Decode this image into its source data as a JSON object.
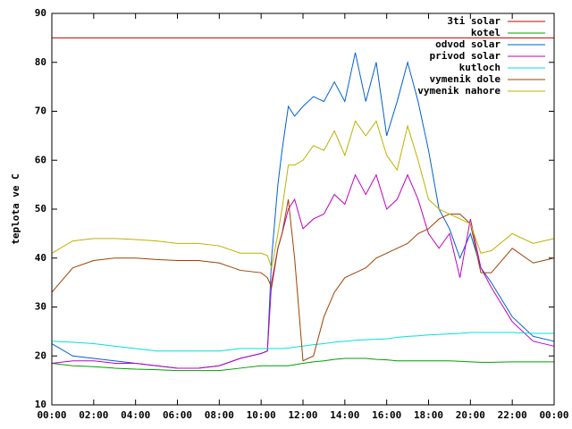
{
  "chart_data": {
    "type": "line",
    "ylabel": "teplota ve C",
    "x": [
      0,
      1,
      2,
      3,
      4,
      5,
      6,
      7,
      8,
      9,
      10,
      10.3,
      10.5,
      10.8,
      11,
      11.3,
      11.6,
      12,
      12.5,
      13,
      13.5,
      14,
      14.5,
      15,
      15.5,
      16,
      16.5,
      17,
      17.5,
      18,
      18.5,
      19,
      19.5,
      20,
      20.5,
      21,
      22,
      23,
      24
    ],
    "xlim": [
      0,
      24
    ],
    "xticks": [
      {
        "value": 0,
        "label": "00:00"
      },
      {
        "value": 2,
        "label": "02:00"
      },
      {
        "value": 4,
        "label": "04:00"
      },
      {
        "value": 6,
        "label": "06:00"
      },
      {
        "value": 8,
        "label": "08:00"
      },
      {
        "value": 10,
        "label": "10:00"
      },
      {
        "value": 12,
        "label": "12:00"
      },
      {
        "value": 14,
        "label": "14:00"
      },
      {
        "value": 16,
        "label": "16:00"
      },
      {
        "value": 18,
        "label": "18:00"
      },
      {
        "value": 20,
        "label": "20:00"
      },
      {
        "value": 22,
        "label": "22:00"
      },
      {
        "value": 24,
        "label": "00:00"
      }
    ],
    "ylim": [
      10,
      90
    ],
    "yticks": [
      10,
      20,
      30,
      40,
      50,
      60,
      70,
      80,
      90
    ],
    "legend": "top right",
    "grid": false,
    "series": [
      {
        "name": "3ti solar",
        "color": "#c80000",
        "values": [
          85,
          85,
          85,
          85,
          85,
          85,
          85,
          85,
          85,
          85,
          85,
          85,
          85,
          85,
          85,
          85,
          85,
          85,
          85,
          85,
          85,
          85,
          85,
          85,
          85,
          85,
          85,
          85,
          85,
          85,
          85,
          85,
          85,
          85,
          85,
          85,
          85,
          85,
          85
        ]
      },
      {
        "name": "kotel",
        "color": "#00a000",
        "values": [
          18.5,
          18,
          17.8,
          17.5,
          17.3,
          17.2,
          17,
          17,
          17,
          17.5,
          18,
          18,
          18,
          18,
          18,
          18,
          18.2,
          18.5,
          18.8,
          19,
          19.3,
          19.5,
          19.5,
          19.5,
          19.3,
          19.2,
          19,
          19,
          19,
          19,
          19,
          19,
          18.9,
          18.8,
          18.7,
          18.7,
          18.8,
          18.8,
          18.8
        ]
      },
      {
        "name": "odvod solar",
        "color": "#0060d0",
        "values": [
          22.5,
          20,
          19.5,
          19,
          18.5,
          18,
          17.5,
          17.5,
          18,
          19.5,
          20.5,
          21,
          40,
          55,
          62,
          71,
          69,
          71,
          73,
          72,
          76,
          72,
          82,
          72,
          80,
          65,
          72,
          80,
          72,
          62,
          50,
          46,
          40,
          45,
          38,
          35,
          28,
          24,
          23
        ]
      },
      {
        "name": "privod solar",
        "color": "#c000c0",
        "values": [
          18.5,
          19,
          19,
          18.5,
          18.5,
          18,
          17.5,
          17.5,
          18,
          19.5,
          20.5,
          21,
          35,
          42,
          45,
          50,
          52,
          46,
          48,
          49,
          53,
          51,
          57,
          53,
          57,
          50,
          52,
          57,
          52,
          45,
          42,
          45,
          36,
          48,
          38,
          34,
          27,
          23,
          22
        ]
      },
      {
        "name": "kutloch",
        "color": "#00e0e0",
        "values": [
          23,
          22.8,
          22.5,
          22,
          21.5,
          21,
          21,
          21,
          21,
          21.5,
          21.5,
          21.5,
          21.5,
          21.5,
          21.5,
          21.6,
          21.8,
          22,
          22.3,
          22.5,
          22.8,
          23,
          23.2,
          23.3,
          23.4,
          23.5,
          23.8,
          24,
          24.1,
          24.3,
          24.4,
          24.5,
          24.6,
          24.8,
          24.8,
          24.8,
          24.8,
          24.6,
          24.6
        ]
      },
      {
        "name": "vymenik dole",
        "color": "#a04000",
        "values": [
          33,
          38,
          39.5,
          40,
          40,
          39.7,
          39.5,
          39.5,
          39,
          37.5,
          37,
          36,
          34,
          42,
          45,
          52,
          40,
          19,
          20,
          28,
          33,
          36,
          37,
          38,
          40,
          41,
          42,
          43,
          45,
          46,
          48,
          49,
          49,
          47,
          37,
          37,
          42,
          39,
          40
        ]
      },
      {
        "name": "vymenik nahore",
        "color": "#c0b000",
        "values": [
          41,
          43.5,
          44,
          44,
          43.8,
          43.5,
          43,
          43,
          42.5,
          41,
          41,
          40.5,
          38,
          45,
          50,
          59,
          59,
          60,
          63,
          62,
          66,
          61,
          68,
          65,
          68,
          61,
          58,
          67,
          60,
          52,
          50,
          49,
          48,
          47,
          41,
          41.5,
          45,
          43,
          44
        ]
      }
    ]
  }
}
